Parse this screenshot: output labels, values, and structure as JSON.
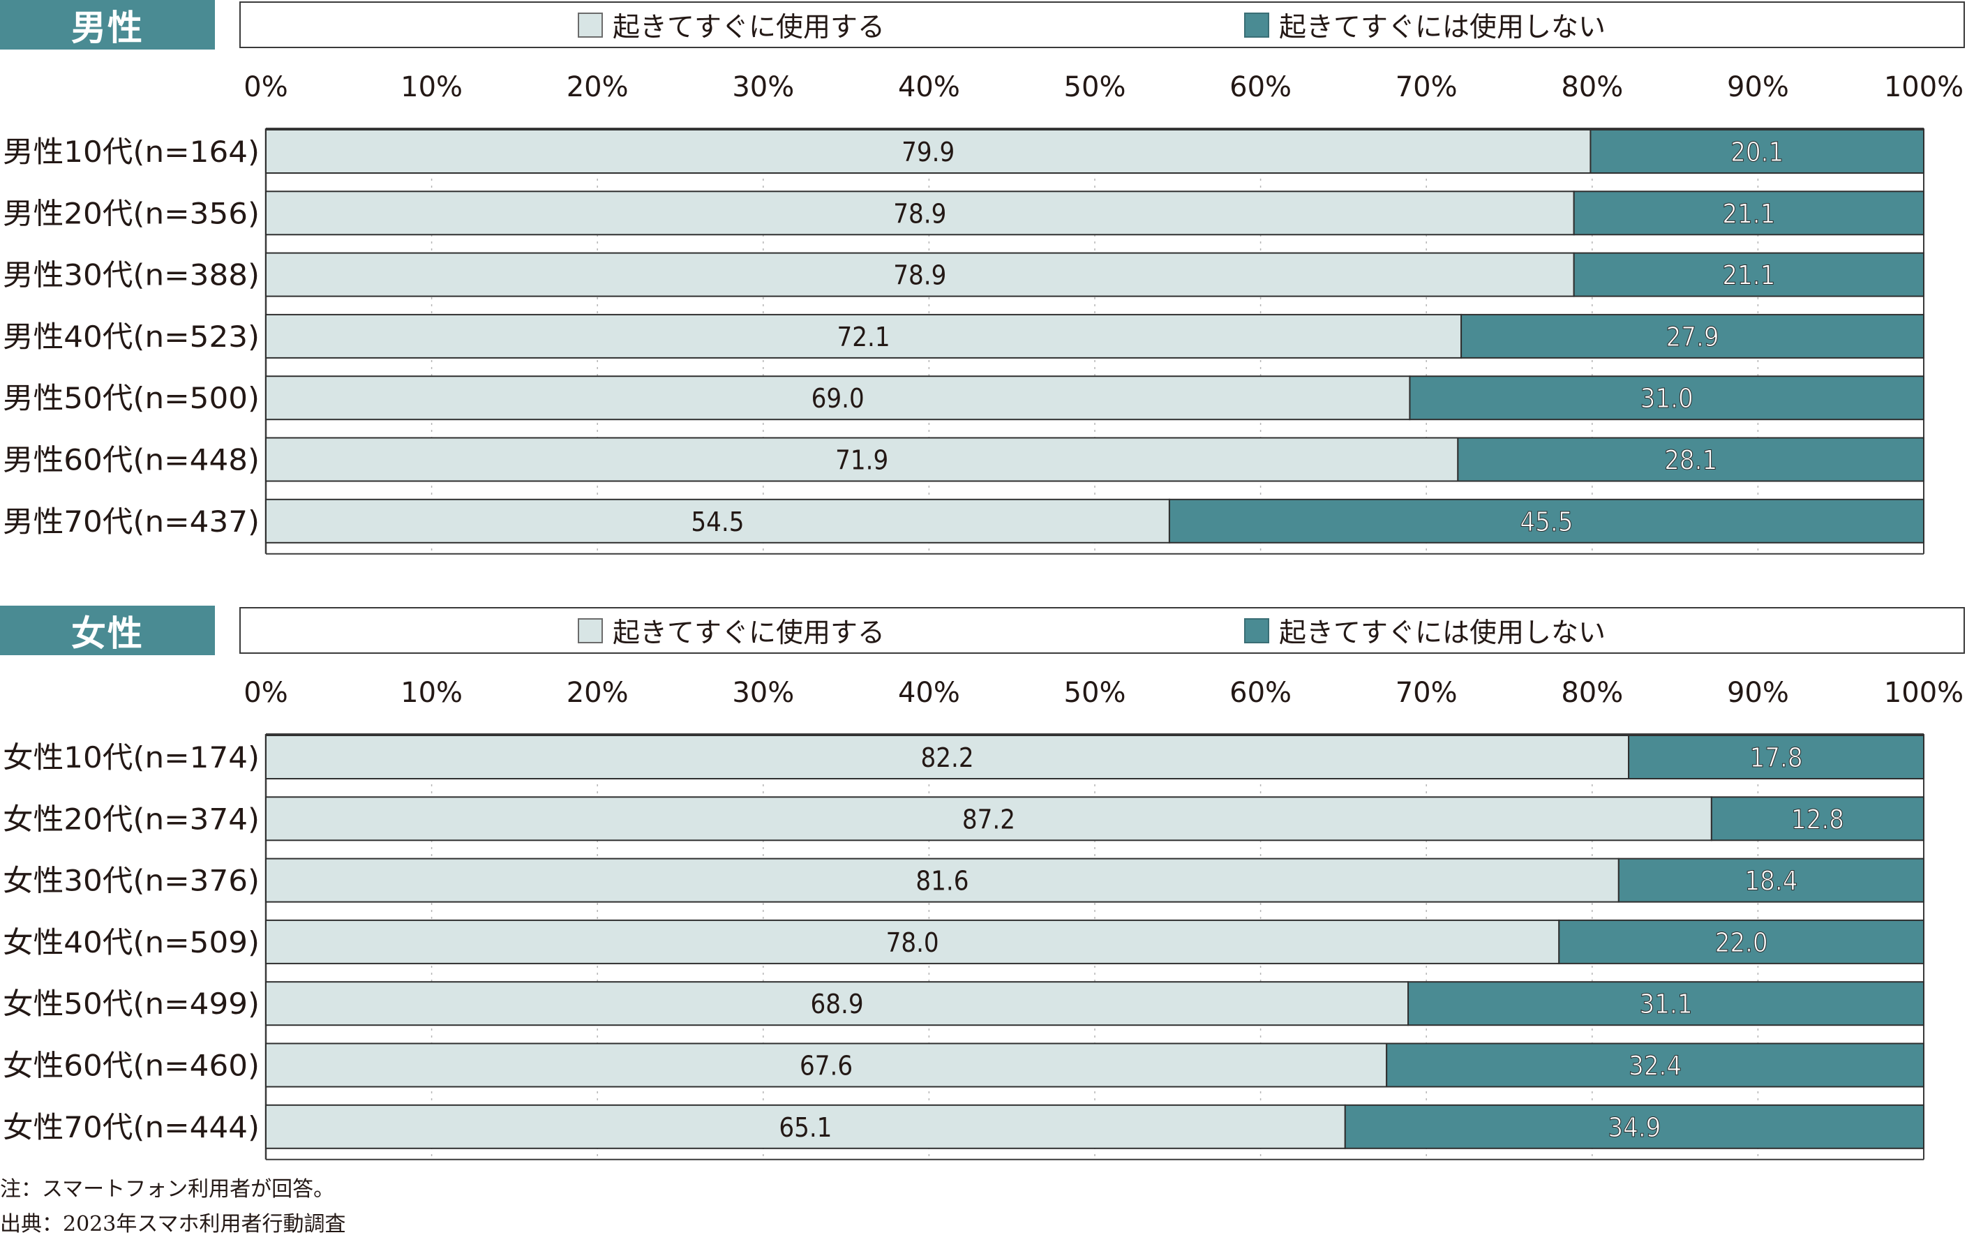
{
  "colors": {
    "uses": "#d8e5e5",
    "not_uses": "#4a8b93",
    "axis": "#3a3a3a",
    "grid": "#b5b5b5"
  },
  "legend": {
    "a": "起きてすぐに使用する",
    "b": "起きてすぐには使用しない"
  },
  "chart_data": [
    {
      "type": "bar",
      "stacked": true,
      "orientation": "horizontal",
      "title": "男性",
      "xlim": [
        0,
        100
      ],
      "x_ticks": [
        "0%",
        "10%",
        "20%",
        "30%",
        "40%",
        "50%",
        "60%",
        "70%",
        "80%",
        "90%",
        "100%"
      ],
      "grid": true,
      "legend_position": "top",
      "categories": [
        "男性10代(n=164)",
        "男性20代(n=356)",
        "男性30代(n=388)",
        "男性40代(n=523)",
        "男性50代(n=500)",
        "男性60代(n=448)",
        "男性70代(n=437)"
      ],
      "series": [
        {
          "name": "起きてすぐに使用する",
          "values": [
            79.9,
            78.9,
            78.9,
            72.1,
            69.0,
            71.9,
            54.5
          ],
          "labels": [
            "79.9",
            "78.9",
            "78.9",
            "72.1",
            "69.0",
            "71.9",
            "54.5"
          ]
        },
        {
          "name": "起きてすぐには使用しない",
          "values": [
            20.1,
            21.1,
            21.1,
            27.9,
            31.0,
            28.1,
            45.5
          ],
          "labels": [
            "20.1",
            "21.1",
            "21.1",
            "27.9",
            "31.0",
            "28.1",
            "45.5"
          ]
        }
      ]
    },
    {
      "type": "bar",
      "stacked": true,
      "orientation": "horizontal",
      "title": "女性",
      "xlim": [
        0,
        100
      ],
      "x_ticks": [
        "0%",
        "10%",
        "20%",
        "30%",
        "40%",
        "50%",
        "60%",
        "70%",
        "80%",
        "90%",
        "100%"
      ],
      "grid": true,
      "legend_position": "top",
      "categories": [
        "女性10代(n=174)",
        "女性20代(n=374)",
        "女性30代(n=376)",
        "女性40代(n=509)",
        "女性50代(n=499)",
        "女性60代(n=460)",
        "女性70代(n=444)"
      ],
      "series": [
        {
          "name": "起きてすぐに使用する",
          "values": [
            82.2,
            87.2,
            81.6,
            78.0,
            68.9,
            67.6,
            65.1
          ],
          "labels": [
            "82.2",
            "87.2",
            "81.6",
            "78.0",
            "68.9",
            "67.6",
            "65.1"
          ]
        },
        {
          "name": "起きてすぐには使用しない",
          "values": [
            17.8,
            12.8,
            18.4,
            22.0,
            31.1,
            32.4,
            34.9
          ],
          "labels": [
            "17.8",
            "12.8",
            "18.4",
            "22.0",
            "31.1",
            "32.4",
            "34.9"
          ]
        }
      ]
    }
  ],
  "notes": {
    "note": "注：スマートフォン利用者が回答。",
    "source": "出典：2023年スマホ利用者行動調査"
  }
}
